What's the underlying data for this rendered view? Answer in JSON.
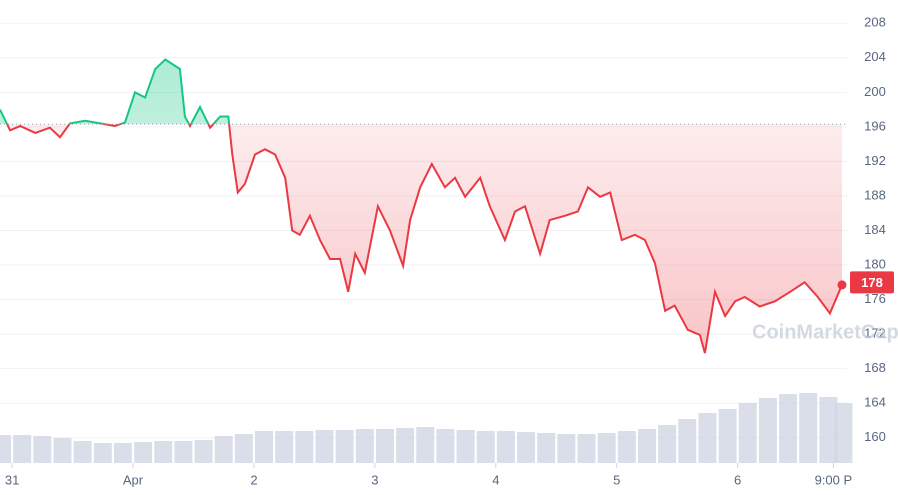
{
  "chart_data": {
    "type": "line",
    "x": [
      -2.4,
      -0.4,
      1.6,
      4.6,
      7.5,
      9.5,
      11.5,
      14.5,
      17.5,
      20.4,
      22.4,
      24.4,
      26.4,
      28.4,
      30.4,
      33.3,
      34.3,
      35.3,
      37.3,
      39.3,
      41.3,
      42.9,
      43.7,
      44.8,
      46.2,
      48.2,
      50.2,
      52.2,
      54.2,
      55.6,
      57.1,
      59.1,
      61.1,
      63.1,
      65.1,
      66.7,
      68.1,
      70,
      72.6,
      75,
      77.6,
      79,
      81,
      83.3,
      85.9,
      87.9,
      89.9,
      92.9,
      94.8,
      97.8,
      99.8,
      101.8,
      104.8,
      106.7,
      109.7,
      112.3,
      114.3,
      116.7,
      118.7,
      121,
      123.6,
      125.6,
      127.6,
      129.6,
      131.5,
      134.1,
      136.5,
      137.5,
      139.5,
      141.5,
      143.5,
      145.4,
      148.4,
      151.4,
      154.4,
      157.3,
      159.9,
      162.3,
      164.7
    ],
    "series": [
      {
        "color_up": "#16c784",
        "color_down": "#ea3943",
        "values": [
          198,
          195.6,
          196.1,
          195.3,
          195.9,
          194.8,
          196.4,
          196.7,
          196.4,
          196.1,
          196.5,
          200,
          199.4,
          202.7,
          203.8,
          202.7,
          197.2,
          196.1,
          198.3,
          195.9,
          197.2,
          197.2,
          192.8,
          188.4,
          189.4,
          192.8,
          193.4,
          192.8,
          190.1,
          184,
          183.5,
          185.7,
          182.9,
          180.7,
          180.7,
          176.9,
          181.3,
          179.1,
          186.8,
          184,
          179.9,
          185.2,
          189,
          191.7,
          189,
          190.1,
          187.9,
          190.1,
          186.8,
          182.9,
          186.2,
          186.8,
          181.3,
          185.2,
          185.7,
          186.2,
          189,
          187.9,
          188.4,
          182.9,
          183.5,
          182.9,
          180.2,
          174.7,
          175.3,
          172.5,
          171.9,
          169.8,
          176.9,
          174.1,
          175.8,
          176.3,
          175.2,
          175.8,
          176.9,
          178,
          176.3,
          174.4,
          177.7
        ]
      }
    ],
    "baseline": 196.3,
    "last_price": 178,
    "volume": {
      "color": "#cfd6e4",
      "x": [
        -2,
        2,
        6,
        10,
        14,
        18,
        22,
        26,
        30,
        34,
        38,
        42,
        46,
        50,
        54,
        58,
        62,
        66,
        70,
        74,
        78,
        82,
        86,
        90,
        94,
        98,
        102,
        106,
        110,
        114,
        118,
        122,
        126,
        130,
        134,
        138,
        142,
        146,
        150,
        154,
        158,
        162,
        165
      ],
      "values": [
        28,
        28,
        27,
        25,
        22,
        20,
        20,
        21,
        22,
        22,
        23,
        27,
        29,
        32,
        32,
        32,
        33,
        33,
        34,
        34,
        35,
        36,
        34,
        33,
        32,
        32,
        31,
        30,
        29,
        29,
        30,
        32,
        34,
        38,
        44,
        50,
        54,
        60,
        65,
        69,
        70,
        66,
        60
      ],
      "ylim": [
        0,
        100
      ]
    },
    "xlim": [
      -2.4,
      165.7
    ],
    "xticks": [
      {
        "value": 0,
        "label": "31"
      },
      {
        "value": 24,
        "label": "Apr"
      },
      {
        "value": 48,
        "label": "2"
      },
      {
        "value": 72,
        "label": "3"
      },
      {
        "value": 96,
        "label": "4"
      },
      {
        "value": 120,
        "label": "5"
      },
      {
        "value": 144,
        "label": "6"
      },
      {
        "value": 163,
        "label": "9:00 P"
      }
    ],
    "ylim": [
      158.7,
      209.3
    ],
    "yticks": [
      160,
      164,
      168,
      172,
      176,
      180,
      184,
      188,
      192,
      196,
      200,
      204,
      208
    ],
    "grid": true,
    "watermark": "CoinMarketCap"
  }
}
